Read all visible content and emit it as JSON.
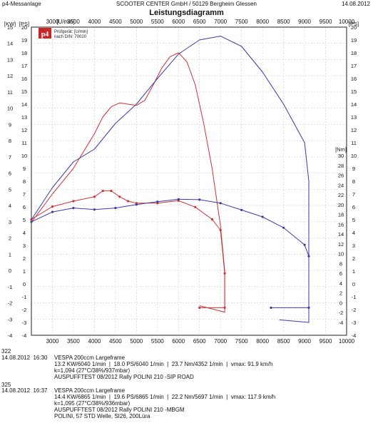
{
  "header": {
    "left": "p4-Messanlage",
    "center": "SCOOTER CENTER GmbH / 50129 Bergheim Glessen",
    "right": "14.08.2012"
  },
  "title": "Leistungsdiagramm",
  "legend_box": {
    "logo_text": "p4",
    "line1": "Prüfgerät: [U/min]",
    "line2": "nach DIN: 70020"
  },
  "chart_data": {
    "type": "line",
    "x": {
      "label": "[U/min]",
      "min": 2500,
      "max": 10000,
      "ticks": [
        3000,
        3500,
        4000,
        4500,
        5000,
        5500,
        6000,
        6500,
        7000,
        7500,
        8000,
        8500,
        9000,
        9500,
        10000
      ],
      "top_ticks": [
        3000,
        3500,
        4000,
        4500,
        5000,
        5500,
        6000,
        6500,
        7000,
        7500,
        8000,
        8500,
        9000,
        9500,
        10000
      ]
    },
    "y_kw": {
      "label": "[KW]",
      "min": -4,
      "max": 15,
      "ticks": [
        -4,
        -3,
        -2,
        -1,
        0,
        1,
        2,
        3,
        4,
        5,
        6,
        7,
        8,
        9,
        10,
        11,
        12,
        13,
        14,
        15
      ]
    },
    "y_ps": {
      "label": "[PS]",
      "min": -4,
      "max": 20,
      "ticks": [
        -4,
        -3,
        -2,
        -1,
        0,
        1,
        2,
        3,
        4,
        5,
        6,
        7,
        8,
        9,
        10,
        11,
        12,
        13,
        14,
        15,
        16,
        17,
        18,
        19,
        20
      ]
    },
    "y_nm": {
      "label": "[Nm]",
      "min": -4,
      "max": 30,
      "ticks": [
        -4,
        -2,
        0,
        2,
        4,
        6,
        8,
        10,
        12,
        14,
        16,
        18,
        20,
        22,
        24,
        26,
        28,
        30
      ]
    },
    "grid": true,
    "series": [
      {
        "run": "322",
        "color": "#cc3333",
        "power_ps": [
          [
            2500,
            4.8
          ],
          [
            3000,
            7.0
          ],
          [
            3500,
            9.0
          ],
          [
            4000,
            11.7
          ],
          [
            4200,
            13.0
          ],
          [
            4400,
            13.8
          ],
          [
            4600,
            14.1
          ],
          [
            4800,
            14.0
          ],
          [
            5000,
            13.9
          ],
          [
            5200,
            14.3
          ],
          [
            5400,
            15.5
          ],
          [
            5600,
            16.8
          ],
          [
            5800,
            17.7
          ],
          [
            6000,
            18.0
          ],
          [
            6200,
            17.3
          ],
          [
            6400,
            15.5
          ],
          [
            6600,
            12.5
          ],
          [
            6800,
            9.0
          ],
          [
            7000,
            4.5
          ],
          [
            7100,
            1.0
          ],
          [
            7100,
            -2.2
          ],
          [
            6500,
            -1.7
          ]
        ],
        "torque_nm": [
          [
            2500,
            17.0
          ],
          [
            3000,
            19.6
          ],
          [
            3500,
            20.7
          ],
          [
            4000,
            21.6
          ],
          [
            4200,
            22.8
          ],
          [
            4400,
            22.8
          ],
          [
            4600,
            21.6
          ],
          [
            4800,
            20.7
          ],
          [
            5000,
            20.3
          ],
          [
            5500,
            20.3
          ],
          [
            6000,
            20.8
          ],
          [
            6400,
            19.5
          ],
          [
            6800,
            17.0
          ],
          [
            7000,
            14.8
          ],
          [
            7100,
            6.0
          ],
          [
            7100,
            -1.0
          ],
          [
            6500,
            -1.0
          ]
        ]
      },
      {
        "run": "325",
        "color": "#3a3aa8",
        "power_ps": [
          [
            2500,
            5.0
          ],
          [
            3000,
            7.5
          ],
          [
            3500,
            9.5
          ],
          [
            4000,
            10.5
          ],
          [
            4500,
            12.5
          ],
          [
            5000,
            14.0
          ],
          [
            5500,
            16.0
          ],
          [
            6000,
            17.9
          ],
          [
            6500,
            19.0
          ],
          [
            7000,
            19.3
          ],
          [
            7500,
            18.5
          ],
          [
            8000,
            16.5
          ],
          [
            8500,
            14.0
          ],
          [
            9000,
            11.0
          ],
          [
            9100,
            8.0
          ],
          [
            9100,
            -3.0
          ],
          [
            8400,
            -2.8
          ]
        ],
        "torque_nm": [
          [
            2500,
            16.5
          ],
          [
            3000,
            18.5
          ],
          [
            3500,
            19.3
          ],
          [
            4000,
            19.0
          ],
          [
            4500,
            19.3
          ],
          [
            5000,
            20.0
          ],
          [
            5500,
            20.6
          ],
          [
            6000,
            21.1
          ],
          [
            6500,
            21.0
          ],
          [
            7000,
            20.3
          ],
          [
            7500,
            18.9
          ],
          [
            8000,
            17.5
          ],
          [
            8500,
            15.3
          ],
          [
            9000,
            11.8
          ],
          [
            9100,
            9.5
          ],
          [
            9100,
            -1.0
          ],
          [
            8200,
            -1.0
          ]
        ]
      }
    ]
  },
  "footer": {
    "run1_id": "322",
    "run1_date": "14.08.2012  16:30",
    "run1_line1": "VESPA 200ccm Largeframe",
    "run1_line2": "13.2 KW/6040 1/min  |  18.0 PS/6040 1/min  |  23.7 Nm/4352 1/min  |  vmax: 91.9 km/h",
    "run1_line3": "k=1,094 (27°C/38%/937mbar)",
    "run1_line4": "AUSPUFFTEST 08/2012 Rally POLINI 210 -SIP ROAD",
    "run2_id": "325",
    "run2_date": "14.08.2012  16:37",
    "run2_line1": "VESPA 200ccm Largeframe",
    "run2_line2": "14.4 KW/6865 1/min  |  19.6 PS/6865 1/min  |  22.2 Nm/5697 1/min  |  vmax: 117.9 km/h",
    "run2_line3": "k=1,095 (27°C/38%/936mbar)",
    "run2_line4": "AUSPUFFTEST 08/2012 Rally POLINI 210 -MBGM",
    "run2_line5": "POLINI, 57 STD Welle, SI26, 200Lüra"
  }
}
